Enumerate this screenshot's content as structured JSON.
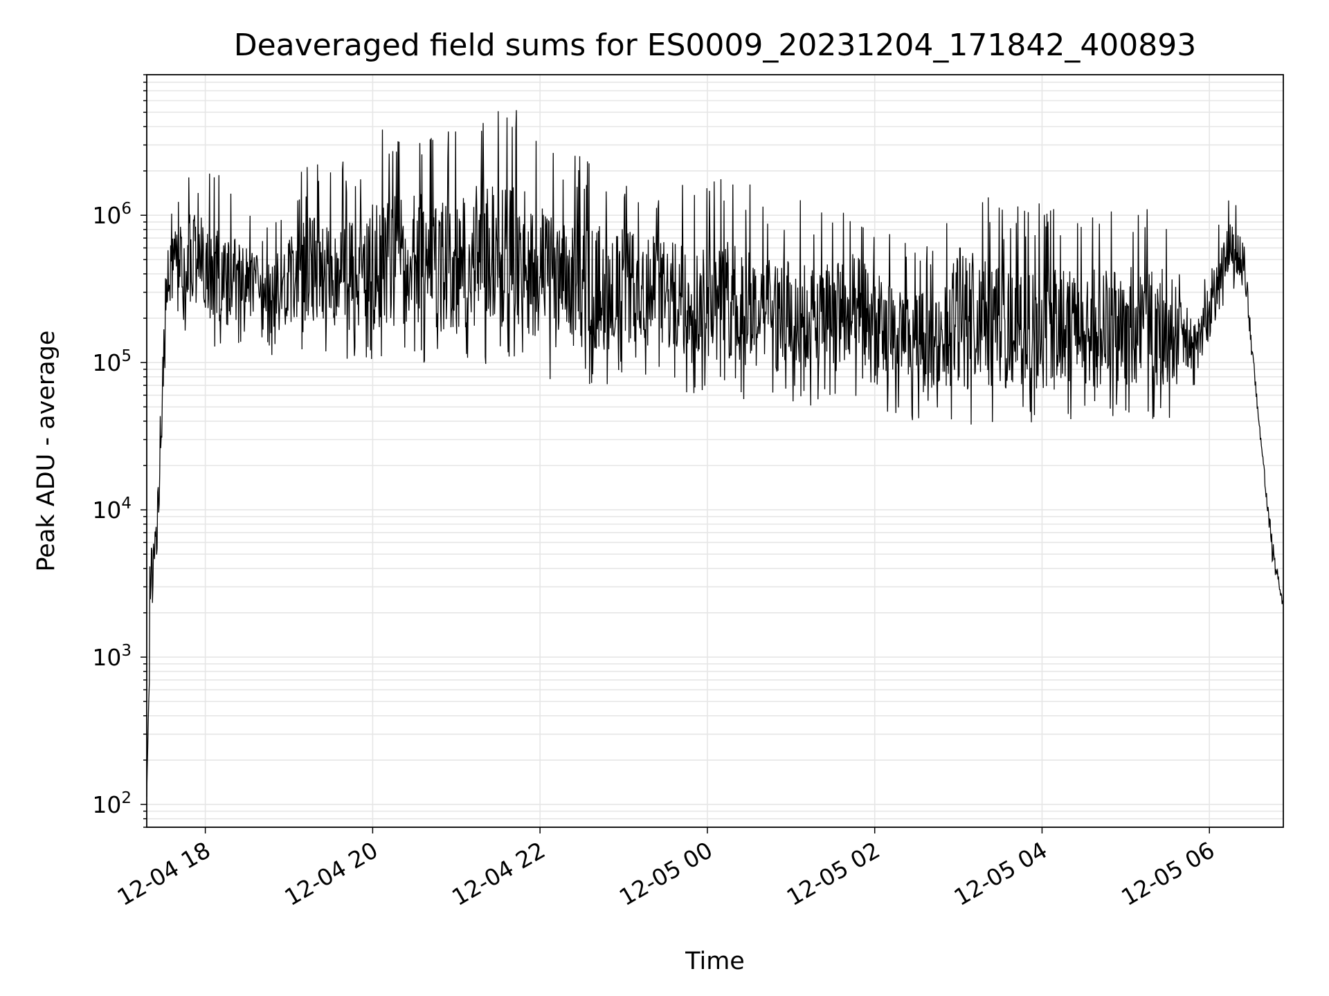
{
  "chart_data": {
    "type": "line",
    "title": "Deaveraged field sums for ES0009_20231204_171842_400893",
    "xlabel": "Time",
    "ylabel": "Peak ADU - average",
    "x_axis": {
      "scale": "time",
      "range": [
        "2023-12-04 17:18",
        "2023-12-05 06:53"
      ],
      "tick_values": [
        "2023-12-04 18:00",
        "2023-12-04 20:00",
        "2023-12-04 22:00",
        "2023-12-05 00:00",
        "2023-12-05 02:00",
        "2023-12-05 04:00",
        "2023-12-05 06:00"
      ],
      "tick_labels": [
        "12-04 18",
        "12-04 20",
        "12-04 22",
        "12-05 00",
        "12-05 02",
        "12-05 04",
        "12-05 06"
      ]
    },
    "y_axis": {
      "scale": "log",
      "ylim": [
        70,
        9000000
      ],
      "tick_values": [
        100,
        1000,
        10000,
        100000,
        1000000
      ],
      "tick_labels": [
        {
          "base": "10",
          "exp": "2"
        },
        {
          "base": "10",
          "exp": "3"
        },
        {
          "base": "10",
          "exp": "4"
        },
        {
          "base": "10",
          "exp": "5"
        },
        {
          "base": "10",
          "exp": "6"
        }
      ]
    },
    "grid": true,
    "series": [
      {
        "color": "#000000",
        "envelope": [
          {
            "t": "2023-12-04 17:18",
            "low": 100,
            "high": 130
          },
          {
            "t": "2023-12-04 17:21",
            "low": 1000,
            "high": 15000
          },
          {
            "t": "2023-12-04 17:25",
            "low": 4000,
            "high": 14000
          },
          {
            "t": "2023-12-04 17:28",
            "low": 12000,
            "high": 60000
          },
          {
            "t": "2023-12-04 17:32",
            "low": 150000,
            "high": 1200000
          },
          {
            "t": "2023-12-04 17:45",
            "low": 150000,
            "high": 2700000
          },
          {
            "t": "2023-12-04 18:15",
            "low": 120000,
            "high": 1800000
          },
          {
            "t": "2023-12-04 18:45",
            "low": 100000,
            "high": 900000
          },
          {
            "t": "2023-12-04 19:15",
            "low": 120000,
            "high": 2500000
          },
          {
            "t": "2023-12-04 19:45",
            "low": 100000,
            "high": 2300000
          },
          {
            "t": "2023-12-04 20:00",
            "low": 90000,
            "high": 3700000
          },
          {
            "t": "2023-12-04 20:30",
            "low": 100000,
            "high": 4700000
          },
          {
            "t": "2023-12-04 21:00",
            "low": 80000,
            "high": 4000000
          },
          {
            "t": "2023-12-04 21:15",
            "low": 100000,
            "high": 5500000
          },
          {
            "t": "2023-12-04 21:45",
            "low": 90000,
            "high": 5500000
          },
          {
            "t": "2023-12-04 22:15",
            "low": 70000,
            "high": 2700000
          },
          {
            "t": "2023-12-04 22:45",
            "low": 70000,
            "high": 2500000
          },
          {
            "t": "2023-12-04 23:15",
            "low": 80000,
            "high": 2000000
          },
          {
            "t": "2023-12-04 23:45",
            "low": 60000,
            "high": 1700000
          },
          {
            "t": "2023-12-05 00:15",
            "low": 60000,
            "high": 1900000
          },
          {
            "t": "2023-12-05 00:45",
            "low": 50000,
            "high": 1500000
          },
          {
            "t": "2023-12-05 01:15",
            "low": 50000,
            "high": 1200000
          },
          {
            "t": "2023-12-05 01:45",
            "low": 45000,
            "high": 1600000
          },
          {
            "t": "2023-12-05 02:15",
            "low": 40000,
            "high": 800000
          },
          {
            "t": "2023-12-05 02:45",
            "low": 40000,
            "high": 700000
          },
          {
            "t": "2023-12-05 03:00",
            "low": 35000,
            "high": 2200000
          },
          {
            "t": "2023-12-05 03:30",
            "low": 40000,
            "high": 1200000
          },
          {
            "t": "2023-12-05 04:00",
            "low": 35000,
            "high": 1300000
          },
          {
            "t": "2023-12-05 04:30",
            "low": 40000,
            "high": 1200000
          },
          {
            "t": "2023-12-05 05:00",
            "low": 40000,
            "high": 1300000
          },
          {
            "t": "2023-12-05 05:30",
            "low": 40000,
            "high": 1200000
          },
          {
            "t": "2023-12-05 05:50",
            "low": 60000,
            "high": 300000
          },
          {
            "t": "2023-12-05 06:15",
            "low": 300000,
            "high": 1500000
          },
          {
            "t": "2023-12-05 06:25",
            "low": 300000,
            "high": 1000000
          },
          {
            "t": "2023-12-05 06:35",
            "low": 40000,
            "high": 50000
          },
          {
            "t": "2023-12-05 06:45",
            "low": 4000,
            "high": 8000
          },
          {
            "t": "2023-12-05 06:53",
            "low": 2000,
            "high": 2500
          }
        ]
      }
    ]
  }
}
